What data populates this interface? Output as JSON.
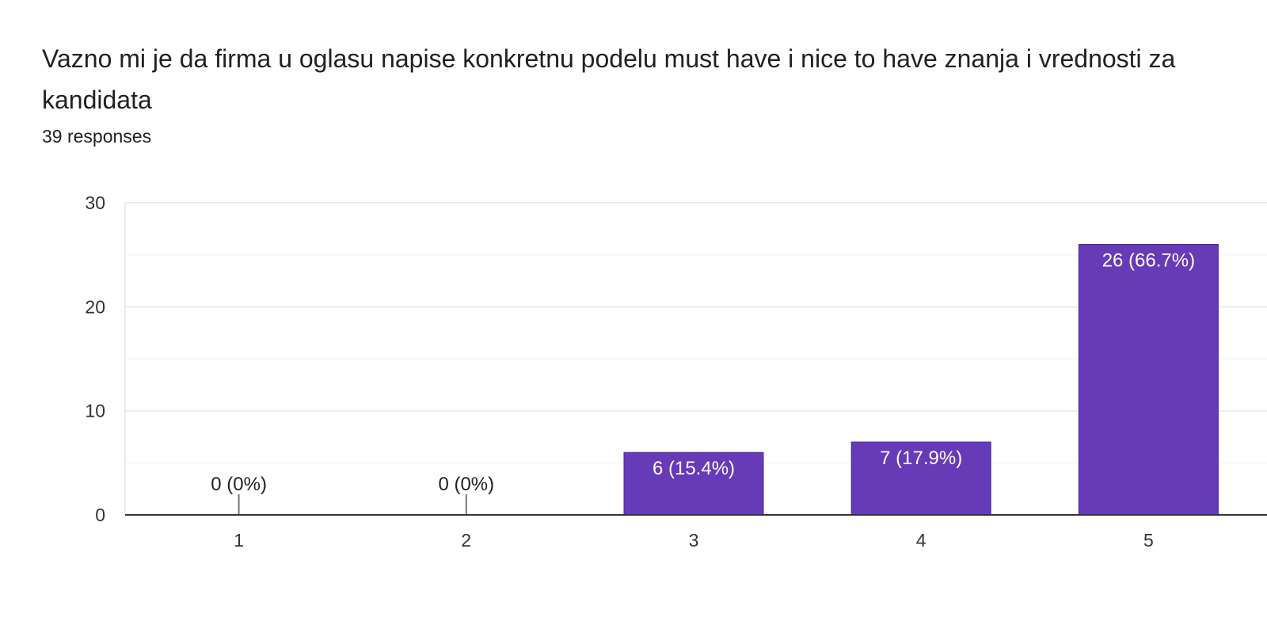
{
  "header": {
    "title": "Vazno mi je da firma u oglasu napise konkretnu podelu must have i nice to have znanja i vrednosti za kandidata",
    "responses": "39 responses"
  },
  "colors": {
    "bar": "#673ab7",
    "gridline": "#ebebeb",
    "minor_gridline": "#f5f5f5",
    "baseline": "#333333"
  },
  "chart_data": {
    "type": "bar",
    "categories": [
      "1",
      "2",
      "3",
      "4",
      "5"
    ],
    "values": [
      0,
      0,
      6,
      7,
      26
    ],
    "data_labels": [
      "0 (0%)",
      "0 (0%)",
      "6 (15.4%)",
      "7 (17.9%)",
      "26 (66.7%)"
    ],
    "yticks": [
      0,
      10,
      20,
      30
    ],
    "ylim": [
      0,
      30
    ],
    "grid": true,
    "legend": "none"
  }
}
